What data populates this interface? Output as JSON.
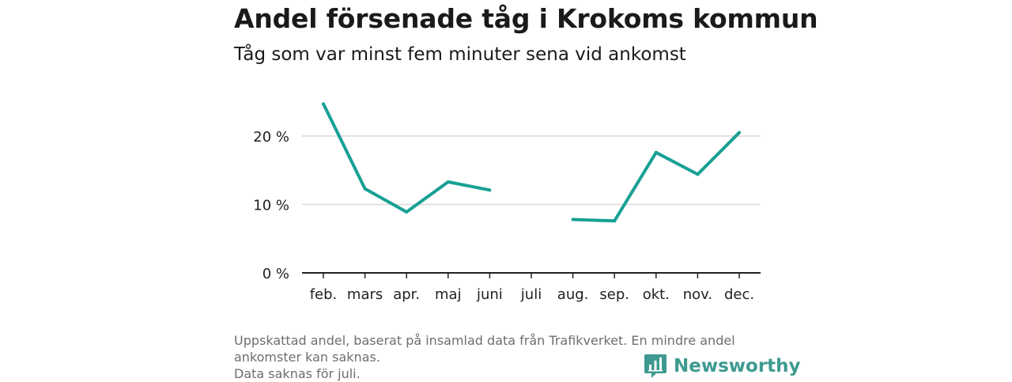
{
  "header": {
    "title": "Andel försenade tåg i Krokoms kommun",
    "subtitle": "Tåg som var minst fem minuter sena vid ankomst"
  },
  "footnote": {
    "lines": [
      "Uppskattad andel, baserat på insamlad data från Trafikverket. En mindre andel ankomster kan saknas.",
      "Data saknas för juli."
    ]
  },
  "brand": {
    "name": "Newsworthy",
    "icon": "newsworthy-logo-icon",
    "color": "#3e9a90"
  },
  "chart_data": {
    "type": "line",
    "title": "Andel försenade tåg i Krokoms kommun",
    "subtitle": "Tåg som var minst fem minuter sena vid ankomst",
    "categories": [
      "feb.",
      "mars",
      "apr.",
      "maj",
      "juni",
      "juli",
      "aug.",
      "sep.",
      "okt.",
      "nov.",
      "dec."
    ],
    "series": [
      {
        "values": [
          24.7,
          12.3,
          8.9,
          13.3,
          12.1,
          null,
          7.8,
          7.6,
          17.6,
          14.4,
          20.5
        ],
        "color": "#18a095"
      }
    ],
    "y_ticks": [
      0,
      10,
      20
    ],
    "y_tick_labels": [
      "0 %",
      "10 %",
      "20 %"
    ],
    "ylim": [
      0,
      25
    ],
    "grid": true,
    "xlabel": "",
    "ylabel": ""
  }
}
